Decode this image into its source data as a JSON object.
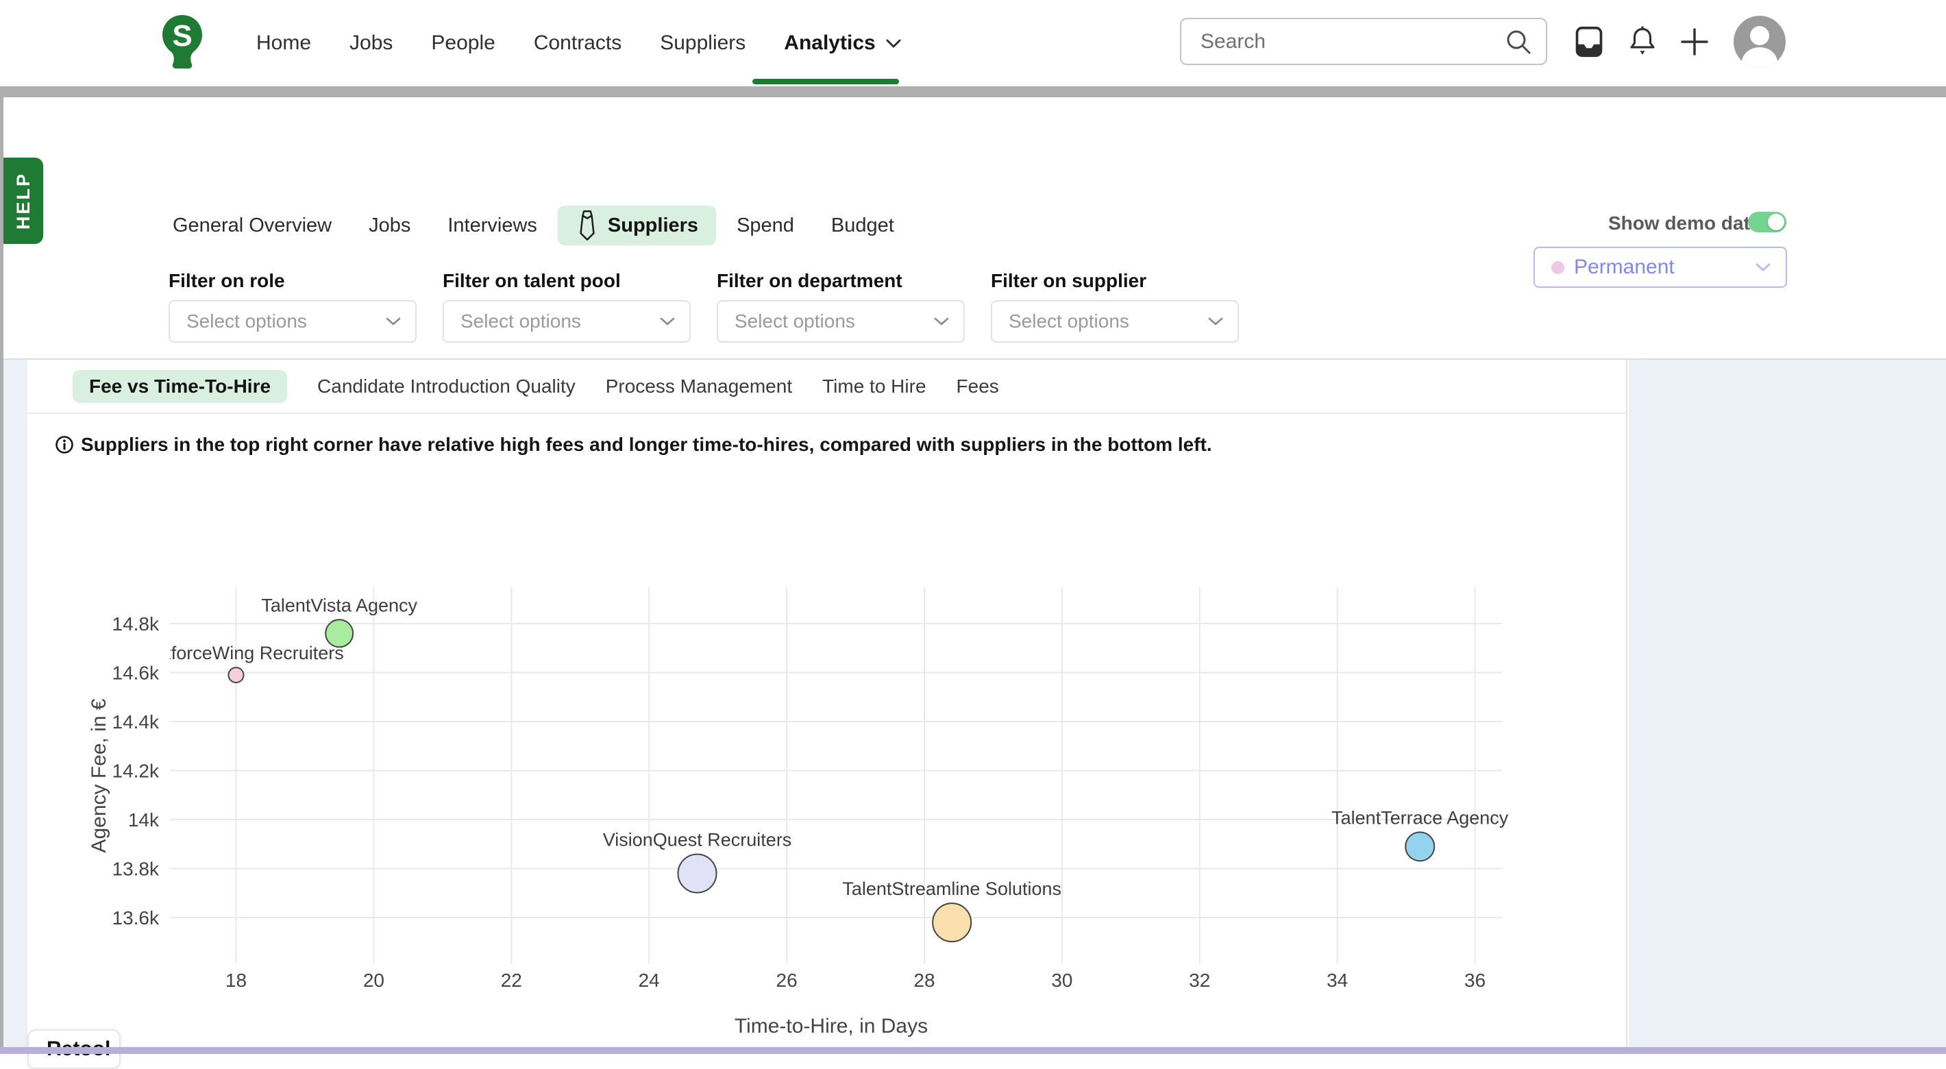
{
  "header": {
    "logo_letter": "S",
    "nav": [
      "Home",
      "Jobs",
      "People",
      "Contracts",
      "Suppliers",
      "Analytics"
    ],
    "active_nav": "Analytics",
    "search_placeholder": "Search"
  },
  "help_tab_label": "HELP",
  "filter_section": {
    "tabs": [
      "General Overview",
      "Jobs",
      "Interviews",
      "Suppliers",
      "Spend",
      "Budget"
    ],
    "active_tab": "Suppliers",
    "show_demo_label": "Show demo data",
    "demo_toggle_on": true,
    "employment_filter_value": "Permanent",
    "filter_labels": [
      "Filter on role",
      "Filter on talent pool",
      "Filter on department",
      "Filter on supplier"
    ],
    "select_placeholder": "Select options"
  },
  "chart_card": {
    "subtabs": [
      "Fee vs Time-To-Hire",
      "Candidate Introduction Quality",
      "Process Management",
      "Time to Hire",
      "Fees"
    ],
    "active_subtab": "Fee vs Time-To-Hire",
    "info_note": "Suppliers in the top right corner have relative high fees and longer time-to-hires, compared with suppliers in the bottom left."
  },
  "chart_data": {
    "type": "scatter",
    "xlabel": "Time-to-Hire, in Days",
    "ylabel": "Agency Fee, in €",
    "xlim": [
      17.0,
      36.8
    ],
    "ylim": [
      13450,
      14950
    ],
    "grid": true,
    "x_ticks": [
      18,
      20,
      22,
      24,
      26,
      28,
      30,
      32,
      34,
      36
    ],
    "y_ticks": [
      {
        "value": 14800,
        "label": "14.8k"
      },
      {
        "value": 14600,
        "label": "14.6k"
      },
      {
        "value": 14400,
        "label": "14.4k"
      },
      {
        "value": 14200,
        "label": "14.2k"
      },
      {
        "value": 14000,
        "label": "14k"
      },
      {
        "value": 13800,
        "label": "13.8k"
      },
      {
        "value": 13600,
        "label": "13.6k"
      }
    ],
    "points": [
      {
        "name": "WorkforceWing Recruiters",
        "x": 18.0,
        "y": 14590,
        "radius": 11,
        "color": "#f7cedd"
      },
      {
        "name": "TalentVista Agency",
        "x": 19.5,
        "y": 14760,
        "radius": 20,
        "color": "#a9ec9f"
      },
      {
        "name": "VisionQuest Recruiters",
        "x": 24.7,
        "y": 13780,
        "radius": 28,
        "color": "#e1e2f7"
      },
      {
        "name": "TalentStreamline Solutions",
        "x": 28.4,
        "y": 13580,
        "radius": 28,
        "color": "#fbdfad"
      },
      {
        "name": "TalentTerrace Agency",
        "x": 35.2,
        "y": 13890,
        "radius": 21,
        "color": "#94d3ee"
      }
    ]
  },
  "retool_badge_label": "Retool",
  "colors": {
    "brand_green": "#1f7b33",
    "active_pill_green": "#d9efe0",
    "toggle_green": "#74d492",
    "employment_accent": "#8287ea",
    "employment_border": "#b5bbf2",
    "employment_dot": "#eec9e4",
    "panel_blue": "#ecf1f8",
    "bottom_strip_purple": "#b9b0da",
    "gridline": "#e9e9e9",
    "tick_text": "#444444"
  }
}
